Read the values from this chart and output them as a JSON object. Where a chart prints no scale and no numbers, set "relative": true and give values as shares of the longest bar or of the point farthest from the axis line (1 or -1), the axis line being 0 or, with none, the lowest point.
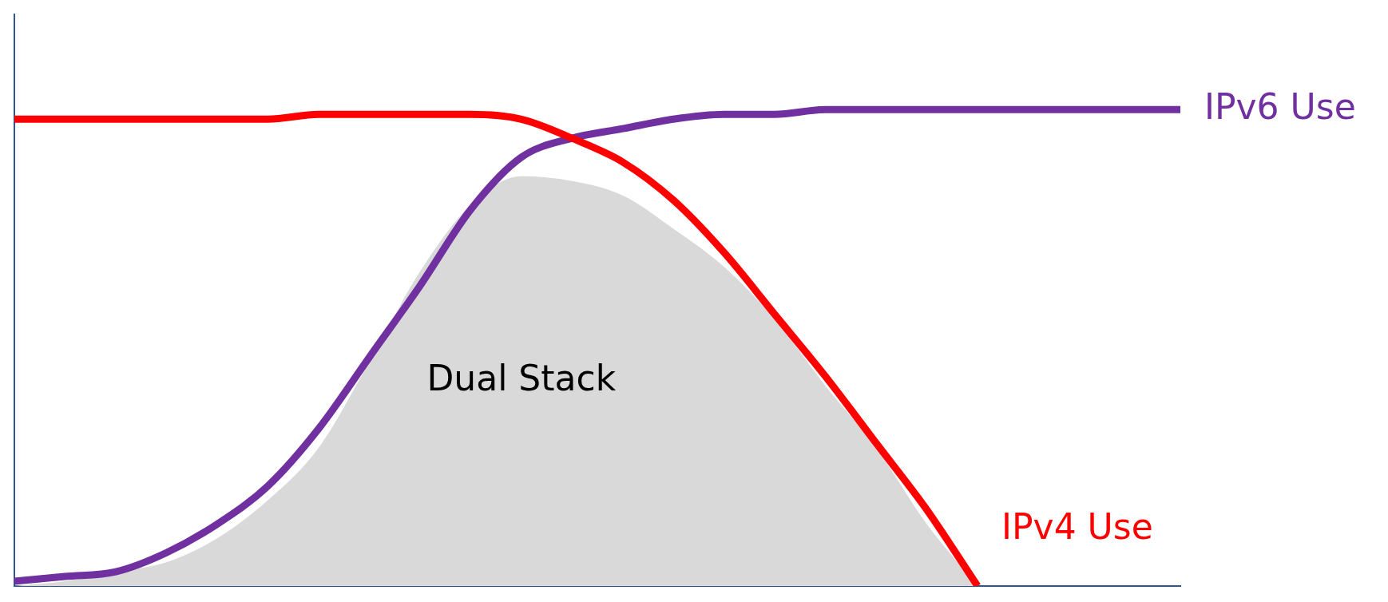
{
  "chart_data": {
    "type": "line",
    "relative": true,
    "categories": [
      null,
      null,
      null,
      null,
      null,
      null,
      null,
      null,
      null,
      null,
      null,
      null,
      null,
      null,
      null,
      null,
      null,
      null,
      null,
      null,
      null,
      null,
      null,
      null
    ],
    "series": [
      {
        "name": "Dual Stack",
        "type": "area",
        "color": "#d9d9d9",
        "values": [
          0,
          0.01,
          0.03,
          0.05,
          0.1,
          0.18,
          0.29,
          0.47,
          0.66,
          0.8,
          0.86,
          0.85,
          0.82,
          0.75,
          0.67,
          0.56,
          0.42,
          0.29,
          0.13,
          0,
          null,
          null,
          null,
          null
        ]
      },
      {
        "name": "IPv4 Use",
        "type": "line",
        "color": "#ff0000",
        "values": [
          0.98,
          0.98,
          0.98,
          0.98,
          0.98,
          0.98,
          0.99,
          0.99,
          0.99,
          0.99,
          0.98,
          0.94,
          0.89,
          0.81,
          0.7,
          0.57,
          0.44,
          0.3,
          0.16,
          0,
          null,
          null,
          null,
          null
        ]
      },
      {
        "name": "IPv6 Use",
        "type": "line",
        "color": "#7030a0",
        "values": [
          0.01,
          0.02,
          0.03,
          0.07,
          0.13,
          0.21,
          0.33,
          0.48,
          0.63,
          0.79,
          0.9,
          0.94,
          0.96,
          0.98,
          0.99,
          0.99,
          1,
          1,
          1,
          1,
          1,
          1,
          1,
          1
        ]
      }
    ],
    "legend": false,
    "grid": false,
    "marker": "none",
    "line_style": "solid"
  }
}
